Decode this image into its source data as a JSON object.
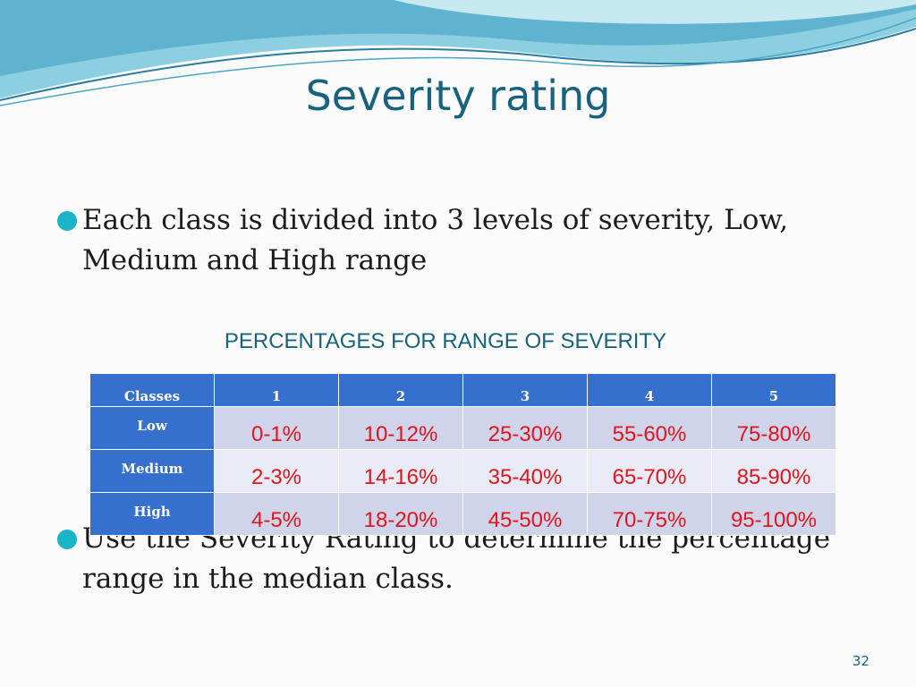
{
  "header": {
    "title": "Severity rating"
  },
  "bullets": [
    "Each class is divided into 3 levels of severity, Low, Medium and High range",
    "Use the Severity Rating to determine the percentage range in the median class."
  ],
  "table": {
    "caption": "PERCENTAGES FOR RANGE OF SEVERITY",
    "header": [
      "Classes",
      "1",
      "2",
      "3",
      "4",
      "5"
    ],
    "rows": [
      [
        "Low",
        "0-1%",
        "10-12%",
        "25-30%",
        "55-60%",
        "75-80%"
      ],
      [
        "Medium",
        "2-3%",
        "14-16%",
        "35-40%",
        "65-70%",
        "85-90%"
      ],
      [
        "High",
        "4-5%",
        "18-20%",
        "45-50%",
        "70-75%",
        "95-100%"
      ]
    ]
  },
  "footer": {
    "page_number": "32"
  }
}
